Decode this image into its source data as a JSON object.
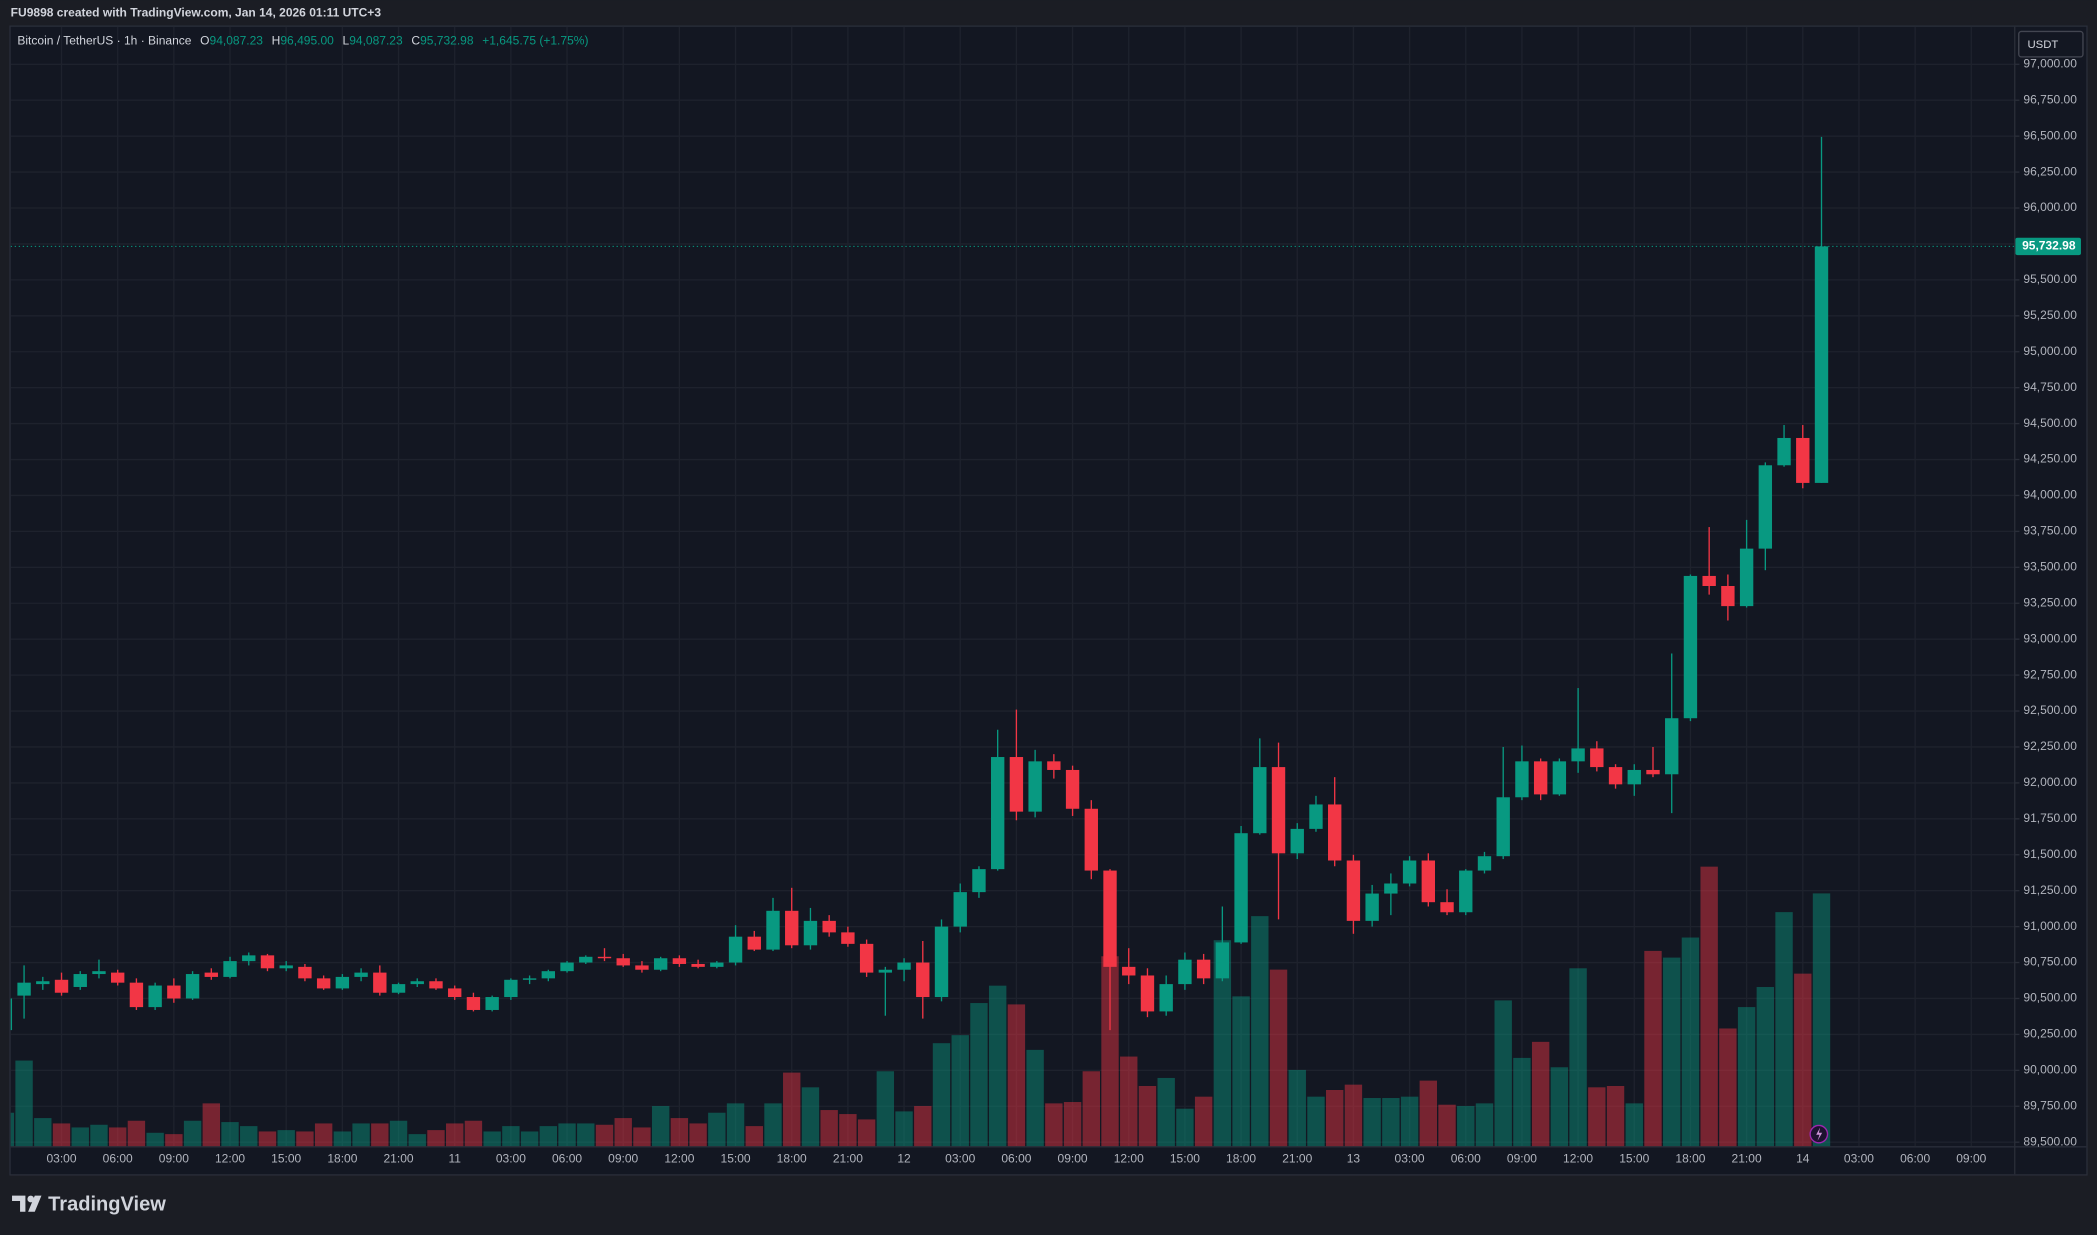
{
  "header": {
    "text": "FU9898 created with TradingView.com, Jan 14, 2026 01:11 UTC+3"
  },
  "legend": {
    "symbol": "Bitcoin / TetherUS · 1h · Binance",
    "o_label": "O",
    "o": "94,087.23",
    "h_label": "H",
    "h": "96,495.00",
    "l_label": "L",
    "l": "94,087.23",
    "c_label": "C",
    "c": "95,732.98",
    "change": "+1,645.75 (+1.75%)"
  },
  "currency": "USDT",
  "footer": {
    "brand": "TradingView"
  },
  "chart_data": {
    "type": "candlestick",
    "up_color": "#089981",
    "down_color": "#f23645",
    "grid": true,
    "categories": [
      null,
      null,
      null,
      "03:00",
      null,
      null,
      "06:00",
      null,
      null,
      "09:00",
      null,
      null,
      "12:00",
      null,
      null,
      "15:00",
      null,
      null,
      "18:00",
      null,
      null,
      "21:00",
      null,
      null,
      "11",
      null,
      null,
      "03:00",
      null,
      null,
      "06:00",
      null,
      null,
      "09:00",
      null,
      null,
      "12:00",
      null,
      null,
      "15:00",
      null,
      null,
      "18:00",
      null,
      null,
      "21:00",
      null,
      null,
      "12",
      null,
      null,
      "03:00",
      null,
      null,
      "06:00",
      null,
      null,
      "09:00",
      null,
      null,
      "12:00",
      null,
      null,
      "15:00",
      null,
      null,
      "18:00",
      null,
      null,
      "21:00",
      null,
      null,
      "13",
      null,
      null,
      "03:00",
      null,
      null,
      "06:00",
      null,
      null,
      "09:00",
      null,
      null,
      "12:00",
      null,
      null,
      "15:00",
      null,
      null,
      "18:00",
      null,
      null,
      "21:00",
      null,
      null,
      "14",
      null,
      null,
      "03:00",
      null,
      null,
      "06:00",
      null,
      null,
      "09:00"
    ],
    "open": [
      90280,
      90520,
      90600,
      90630,
      90580,
      90670,
      90680,
      90610,
      90440,
      90590,
      90500,
      90680,
      90650,
      90760,
      90800,
      90710,
      90720,
      90640,
      90570,
      90650,
      90680,
      90540,
      90600,
      90620,
      90570,
      90510,
      90420,
      90510,
      90630,
      90640,
      90690,
      90750,
      90790,
      90780,
      90730,
      90700,
      90780,
      90740,
      90720,
      90750,
      90930,
      90840,
      91110,
      90870,
      91040,
      90960,
      90880,
      90680,
      90700,
      90750,
      90510,
      91000,
      91240,
      91400,
      92180,
      91800,
      92150,
      92090,
      91820,
      91390,
      90720,
      90660,
      90410,
      90600,
      90770,
      90640,
      90890,
      91650,
      92110,
      91510,
      91680,
      91850,
      91460,
      91040,
      91230,
      91300,
      91460,
      91170,
      91100,
      91390,
      91490,
      91900,
      92150,
      91920,
      92150,
      92240,
      92110,
      91990,
      92090,
      92060,
      92450,
      93440,
      93370,
      93230,
      93630,
      94210,
      94400,
      94087.23,
      null,
      null,
      null,
      null,
      null,
      null,
      null,
      null
    ],
    "high": [
      90520,
      90730,
      90650,
      90680,
      90690,
      90770,
      90700,
      90640,
      90610,
      90640,
      90690,
      90710,
      90790,
      90820,
      90810,
      90760,
      90740,
      90660,
      90670,
      90710,
      90730,
      90610,
      90640,
      90640,
      90590,
      90540,
      90520,
      90640,
      90660,
      90700,
      90760,
      90800,
      90850,
      90810,
      90760,
      90790,
      90800,
      90770,
      90760,
      91010,
      90970,
      91200,
      91270,
      91130,
      91080,
      91000,
      90910,
      90720,
      90780,
      90900,
      91050,
      91300,
      91420,
      92370,
      92510,
      92230,
      92200,
      92120,
      91880,
      91400,
      90850,
      90710,
      90660,
      90820,
      90810,
      91140,
      91700,
      92310,
      92280,
      91720,
      91910,
      92040,
      91500,
      91290,
      91370,
      91490,
      91510,
      91260,
      91400,
      91520,
      92250,
      92260,
      92170,
      92170,
      92660,
      92290,
      92130,
      92130,
      92250,
      92900,
      93450,
      93780,
      93450,
      93830,
      94230,
      94490,
      94490,
      96495,
      null,
      null,
      null,
      null,
      null,
      null,
      null,
      null
    ],
    "low": [
      90250,
      90360,
      90560,
      90520,
      90560,
      90640,
      90590,
      90420,
      90420,
      90470,
      90490,
      90630,
      90640,
      90730,
      90690,
      90690,
      90620,
      90560,
      90560,
      90620,
      90520,
      90530,
      90580,
      90560,
      90490,
      90410,
      90410,
      90490,
      90600,
      90620,
      90680,
      90740,
      90760,
      90720,
      90680,
      90690,
      90720,
      90710,
      90710,
      90730,
      90830,
      90830,
      90850,
      90840,
      90930,
      90860,
      90650,
      90380,
      90620,
      90360,
      90480,
      90960,
      91200,
      91390,
      91740,
      91760,
      92030,
      91770,
      91330,
      90280,
      90600,
      90370,
      90380,
      90560,
      90600,
      90620,
      90880,
      91640,
      91050,
      91470,
      91660,
      91420,
      90950,
      91000,
      91080,
      91280,
      91140,
      91080,
      91080,
      91370,
      91470,
      91880,
      91880,
      91910,
      92070,
      92080,
      91960,
      91910,
      92040,
      91790,
      92430,
      93310,
      93130,
      93220,
      93480,
      94200,
      94050,
      94087.23,
      null,
      null,
      null,
      null,
      null,
      null,
      null,
      null
    ],
    "close": [
      90500,
      90610,
      90620,
      90540,
      90670,
      90690,
      90610,
      90440,
      90590,
      90500,
      90670,
      90650,
      90760,
      90800,
      90710,
      90730,
      90640,
      90570,
      90650,
      90680,
      90540,
      90600,
      90620,
      90570,
      90510,
      90420,
      90510,
      90630,
      90640,
      90690,
      90750,
      90790,
      90780,
      90730,
      90700,
      90780,
      90740,
      90720,
      90750,
      90930,
      90840,
      91110,
      90870,
      91040,
      90960,
      90880,
      90680,
      90700,
      90750,
      90510,
      91000,
      91240,
      91400,
      92180,
      91800,
      92150,
      92090,
      91820,
      91390,
      90720,
      90660,
      90410,
      90600,
      90770,
      90640,
      90890,
      91650,
      92110,
      91510,
      91680,
      91850,
      91460,
      91040,
      91230,
      91300,
      91460,
      91170,
      91100,
      91390,
      91490,
      91900,
      92150,
      91920,
      92150,
      92240,
      92110,
      91990,
      92090,
      92060,
      92450,
      93440,
      93370,
      93230,
      93630,
      94210,
      94400,
      94087.23,
      95732.98,
      null,
      null,
      null,
      null,
      null,
      null,
      null,
      null
    ],
    "volume": [
      25,
      64,
      21,
      17,
      14,
      16,
      14,
      19,
      10,
      9,
      19,
      32,
      18,
      15,
      11,
      12,
      11,
      17,
      11,
      17,
      17,
      19,
      9,
      12,
      17,
      19,
      11,
      15,
      11,
      15,
      17,
      17,
      16,
      21,
      14,
      30,
      21,
      17,
      25,
      32,
      15,
      32,
      55,
      44,
      27,
      24,
      20,
      56,
      26,
      30,
      77,
      83,
      107,
      120,
      106,
      72,
      32,
      33,
      56,
      142,
      67,
      45,
      51,
      28,
      37,
      154,
      112,
      172,
      132,
      57,
      37,
      42,
      46,
      36,
      36,
      37,
      49,
      31,
      30,
      32,
      109,
      66,
      78,
      59,
      133,
      44,
      45,
      32,
      146,
      141,
      156,
      209,
      88,
      104,
      119,
      175,
      129,
      189,
      null,
      null,
      null,
      null,
      null,
      null,
      null,
      null
    ],
    "last_price_label": "95,732.98",
    "ylim": [
      89277,
      97261
    ],
    "yticks": [
      {
        "value": 89500,
        "label": "89,500.00"
      },
      {
        "value": 89750,
        "label": "89,750.00"
      },
      {
        "value": 90000,
        "label": "90,000.00"
      },
      {
        "value": 90250,
        "label": "90,250.00"
      },
      {
        "value": 90500,
        "label": "90,500.00"
      },
      {
        "value": 90750,
        "label": "90,750.00"
      },
      {
        "value": 91000,
        "label": "91,000.00"
      },
      {
        "value": 91250,
        "label": "91,250.00"
      },
      {
        "value": 91500,
        "label": "91,500.00"
      },
      {
        "value": 91750,
        "label": "91,750.00"
      },
      {
        "value": 92000,
        "label": "92,000.00"
      },
      {
        "value": 92250,
        "label": "92,250.00"
      },
      {
        "value": 92500,
        "label": "92,500.00"
      },
      {
        "value": 92750,
        "label": "92,750.00"
      },
      {
        "value": 93000,
        "label": "93,000.00"
      },
      {
        "value": 93250,
        "label": "93,250.00"
      },
      {
        "value": 93500,
        "label": "93,500.00"
      },
      {
        "value": 93750,
        "label": "93,750.00"
      },
      {
        "value": 94000,
        "label": "94,000.00"
      },
      {
        "value": 94250,
        "label": "94,250.00"
      },
      {
        "value": 94500,
        "label": "94,500.00"
      },
      {
        "value": 94750,
        "label": "94,750.00"
      },
      {
        "value": 95000,
        "label": "95,000.00"
      },
      {
        "value": 95250,
        "label": "95,250.00"
      },
      {
        "value": 95500,
        "label": "95,500.00"
      },
      {
        "value": 95750,
        "label": "95,750.00"
      },
      {
        "value": 96000,
        "label": "96,000.00"
      },
      {
        "value": 96250,
        "label": "96,250.00"
      },
      {
        "value": 96500,
        "label": "96,500.00"
      },
      {
        "value": 96750,
        "label": "96,750.00"
      },
      {
        "value": 97000,
        "label": "97,000.00"
      }
    ]
  }
}
